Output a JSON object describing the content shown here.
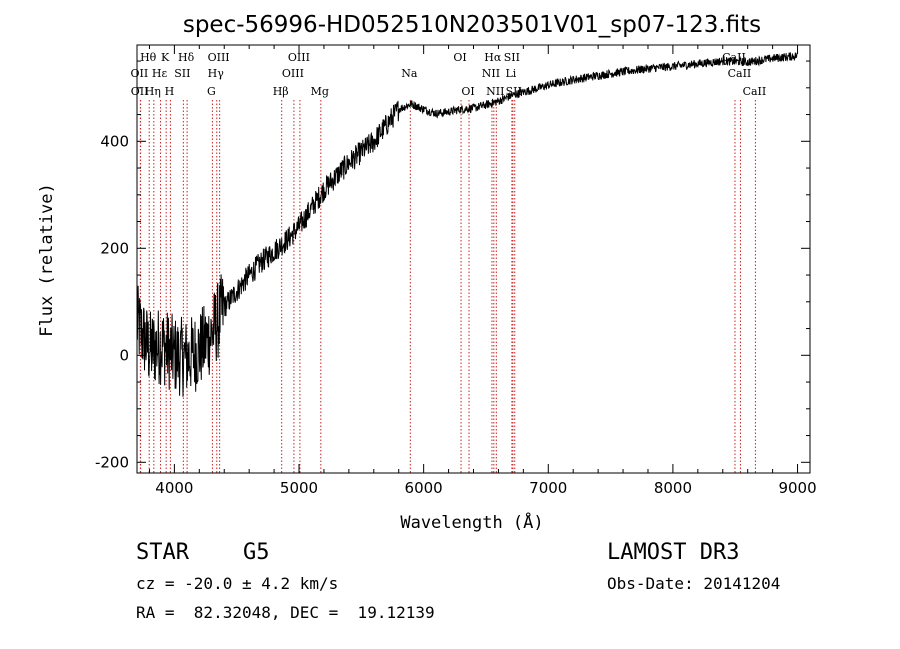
{
  "chart_data": {
    "type": "line",
    "title": "spec-56996-HD052510N203501V01_sp07-123.fits",
    "xlabel": "Wavelength (Å)",
    "ylabel": "Flux (relative)",
    "xlim": [
      3700,
      9100
    ],
    "ylim": [
      -220,
      580
    ],
    "xticks": [
      4000,
      5000,
      6000,
      7000,
      8000,
      9000
    ],
    "yticks": [
      -200,
      0,
      200,
      400
    ],
    "line_color": "#000000",
    "marker_color": "#cc2222",
    "flux_anchors": [
      [
        3700,
        60
      ],
      [
        3800,
        10
      ],
      [
        3900,
        20
      ],
      [
        4000,
        0
      ],
      [
        4100,
        -5
      ],
      [
        4200,
        10
      ],
      [
        4300,
        40
      ],
      [
        4400,
        90
      ],
      [
        4500,
        120
      ],
      [
        4600,
        150
      ],
      [
        4700,
        175
      ],
      [
        4800,
        195
      ],
      [
        4900,
        215
      ],
      [
        5000,
        240
      ],
      [
        5100,
        275
      ],
      [
        5200,
        310
      ],
      [
        5300,
        335
      ],
      [
        5400,
        360
      ],
      [
        5500,
        380
      ],
      [
        5600,
        400
      ],
      [
        5700,
        430
      ],
      [
        5800,
        460
      ],
      [
        5900,
        470
      ],
      [
        6000,
        460
      ],
      [
        6100,
        452
      ],
      [
        6200,
        455
      ],
      [
        6300,
        460
      ],
      [
        6400,
        462
      ],
      [
        6500,
        468
      ],
      [
        6600,
        475
      ],
      [
        6700,
        485
      ],
      [
        6800,
        492
      ],
      [
        6900,
        498
      ],
      [
        7000,
        505
      ],
      [
        7200,
        515
      ],
      [
        7400,
        523
      ],
      [
        7600,
        530
      ],
      [
        7800,
        536
      ],
      [
        8000,
        540
      ],
      [
        8200,
        545
      ],
      [
        8400,
        550
      ],
      [
        8600,
        548
      ],
      [
        8800,
        555
      ],
      [
        9000,
        560
      ]
    ],
    "lines": [
      {
        "label": "Hθ",
        "wave": 3798,
        "row": 0
      },
      {
        "label": "OII",
        "wave": 3727,
        "row": 1
      },
      {
        "label": "OII",
        "wave": 3729,
        "row": 2
      },
      {
        "label": "Hη",
        "wave": 3835,
        "row": 2
      },
      {
        "label": "Hε",
        "wave": 3889,
        "row": 1
      },
      {
        "label": "K",
        "wave": 3934,
        "row": 0
      },
      {
        "label": "H",
        "wave": 3968,
        "row": 2
      },
      {
        "label": "SII",
        "wave": 4072,
        "row": 1
      },
      {
        "label": "Hδ",
        "wave": 4102,
        "row": 0
      },
      {
        "label": "OIII",
        "wave": 4363,
        "row": 0
      },
      {
        "label": "Hγ",
        "wave": 4340,
        "row": 1
      },
      {
        "label": "G",
        "wave": 4305,
        "row": 2
      },
      {
        "label": "Hβ",
        "wave": 4861,
        "row": 2
      },
      {
        "label": "OIII",
        "wave": 4959,
        "row": 1
      },
      {
        "label": "OIII",
        "wave": 5007,
        "row": 0
      },
      {
        "label": "Mg",
        "wave": 5175,
        "row": 2
      },
      {
        "label": "Na",
        "wave": 5893,
        "row": 1
      },
      {
        "label": "OI",
        "wave": 6300,
        "row": 0
      },
      {
        "label": "OI",
        "wave": 6364,
        "row": 2
      },
      {
        "label": "NII",
        "wave": 6548,
        "row": 1
      },
      {
        "label": "Hα",
        "wave": 6563,
        "row": 0
      },
      {
        "label": "NII",
        "wave": 6583,
        "row": 2
      },
      {
        "label": "SII",
        "wave": 6716,
        "row": 0
      },
      {
        "label": "Li",
        "wave": 6708,
        "row": 1
      },
      {
        "label": "SII",
        "wave": 6731,
        "row": 2
      },
      {
        "label": "CaII",
        "wave": 8498,
        "row": 0
      },
      {
        "label": "CaII",
        "wave": 8542,
        "row": 1
      },
      {
        "label": "CaII",
        "wave": 8662,
        "row": 2
      }
    ]
  },
  "info": {
    "object_class": "STAR",
    "subclass": "G5",
    "survey": "LAMOST DR3",
    "cz": "cz = -20.0 ± 4.2 km/s",
    "obs_date": "Obs-Date: 20141204",
    "coords": "RA =  82.32048, DEC =  19.12139"
  }
}
